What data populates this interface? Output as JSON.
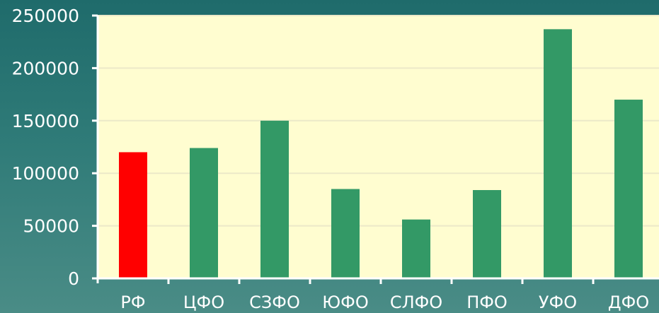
{
  "chart_data": {
    "type": "bar",
    "categories": [
      "РФ",
      "ЦФО",
      "СЗФО",
      "ЮФО",
      "СЛФО",
      "ПФО",
      "УФО",
      "ДФО"
    ],
    "values": [
      120000,
      124000,
      150000,
      85000,
      56000,
      84000,
      237000,
      170000
    ],
    "highlight_index": 0,
    "ylim": [
      0,
      250000
    ],
    "yticks": [
      "0",
      "50000",
      "100000",
      "150000",
      "200000",
      "250000"
    ],
    "grid": true,
    "legend": "none",
    "colors": {
      "plot_background": "#fffdd0",
      "bar": "#339966",
      "highlight_bar": "#ff0000",
      "text": "#ffffff",
      "gridline": "#ece9c8"
    }
  }
}
